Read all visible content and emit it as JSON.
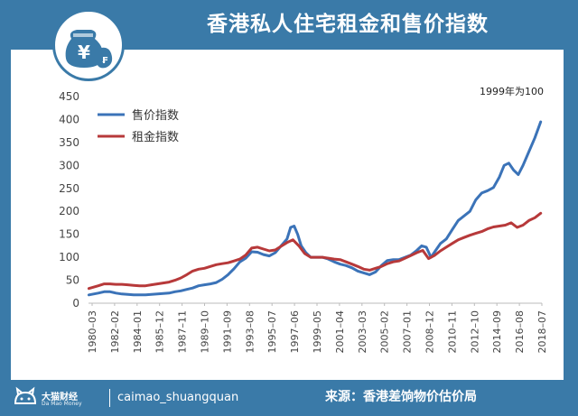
{
  "title": "香港私人住宅租金和售价指数",
  "logo": {
    "glyph": "¥",
    "icon": "money-bag-icon"
  },
  "footer": {
    "brand_cn": "大猫财经",
    "brand_en": "Da Mao Money",
    "account": "caimao_shuangquan",
    "source": "来源：香港差饷物价估价局"
  },
  "chart_data": {
    "type": "line",
    "note": "1999年为100",
    "y_ticks": [
      0,
      50,
      100,
      150,
      200,
      250,
      300,
      350,
      400,
      450
    ],
    "ylim": [
      0,
      450
    ],
    "x_ticks": [
      "1980–03",
      "1982–02",
      "1984–01",
      "1985–12",
      "1987–11",
      "1989–10",
      "1991–09",
      "1993–08",
      "1995–07",
      "1997–06",
      "1999–05",
      "2001–04",
      "2003–03",
      "2005–02",
      "2007–01",
      "2008–12",
      "2010–11",
      "2012–10",
      "2014–09",
      "2016–08",
      "2018–07"
    ],
    "xlim": [
      1980.17,
      2018.6
    ],
    "grid": false,
    "legend": "upper-left",
    "colors": {
      "price": "#3b73b8",
      "rent": "#b7393a"
    },
    "series": [
      {
        "name": "售价指数",
        "x": [
          1980.2,
          1981.0,
          1981.5,
          1982.0,
          1982.5,
          1983.0,
          1983.5,
          1984.0,
          1984.5,
          1985.0,
          1985.5,
          1986.0,
          1986.5,
          1987.0,
          1987.5,
          1988.0,
          1988.5,
          1989.0,
          1989.5,
          1990.0,
          1990.5,
          1991.0,
          1991.5,
          1992.0,
          1992.5,
          1993.0,
          1993.5,
          1994.0,
          1994.5,
          1995.0,
          1995.5,
          1996.0,
          1996.5,
          1997.0,
          1997.3,
          1997.6,
          1997.9,
          1998.2,
          1998.6,
          1999.0,
          1999.5,
          2000.0,
          2000.5,
          2001.0,
          2001.5,
          2002.0,
          2002.5,
          2003.0,
          2003.5,
          2004.0,
          2004.5,
          2005.0,
          2005.5,
          2006.0,
          2006.5,
          2007.0,
          2007.5,
          2008.0,
          2008.4,
          2008.8,
          2009.2,
          2009.6,
          2010.0,
          2010.5,
          2011.0,
          2011.5,
          2012.0,
          2012.5,
          2013.0,
          2013.5,
          2014.0,
          2014.5,
          2015.0,
          2015.4,
          2015.8,
          2016.2,
          2016.6,
          2017.0,
          2017.5,
          2018.0,
          2018.5
        ],
        "values": [
          18,
          22,
          25,
          25,
          22,
          20,
          19,
          18,
          18,
          18,
          19,
          20,
          21,
          22,
          25,
          27,
          30,
          33,
          38,
          40,
          42,
          45,
          52,
          62,
          75,
          90,
          98,
          112,
          111,
          106,
          103,
          110,
          125,
          140,
          165,
          168,
          150,
          125,
          110,
          100,
          100,
          100,
          96,
          90,
          85,
          82,
          77,
          70,
          66,
          62,
          68,
          82,
          93,
          95,
          95,
          100,
          105,
          115,
          125,
          122,
          100,
          115,
          130,
          140,
          160,
          180,
          190,
          200,
          225,
          240,
          245,
          252,
          275,
          300,
          305,
          290,
          280,
          300,
          330,
          360,
          395
        ]
      },
      {
        "name": "租金指数",
        "x": [
          1980.2,
          1981.0,
          1981.5,
          1982.0,
          1982.5,
          1983.0,
          1983.5,
          1984.0,
          1984.5,
          1985.0,
          1985.5,
          1986.0,
          1986.5,
          1987.0,
          1987.5,
          1988.0,
          1988.5,
          1989.0,
          1989.5,
          1990.0,
          1990.5,
          1991.0,
          1991.5,
          1992.0,
          1992.5,
          1993.0,
          1993.5,
          1994.0,
          1994.5,
          1995.0,
          1995.5,
          1996.0,
          1996.5,
          1997.0,
          1997.5,
          1998.0,
          1998.5,
          1999.0,
          1999.5,
          2000.0,
          2000.5,
          2001.0,
          2001.5,
          2002.0,
          2002.5,
          2003.0,
          2003.5,
          2004.0,
          2004.5,
          2005.0,
          2005.5,
          2006.0,
          2006.5,
          2007.0,
          2007.5,
          2008.0,
          2008.5,
          2009.0,
          2009.5,
          2010.0,
          2010.5,
          2011.0,
          2011.5,
          2012.0,
          2012.5,
          2013.0,
          2013.5,
          2014.0,
          2014.5,
          2015.0,
          2015.5,
          2016.0,
          2016.5,
          2017.0,
          2017.5,
          2018.0,
          2018.5
        ],
        "values": [
          32,
          38,
          42,
          42,
          41,
          41,
          40,
          39,
          38,
          38,
          40,
          42,
          44,
          46,
          50,
          55,
          62,
          70,
          74,
          76,
          80,
          84,
          86,
          88,
          92,
          96,
          105,
          120,
          122,
          118,
          114,
          116,
          124,
          132,
          138,
          125,
          108,
          100,
          100,
          100,
          98,
          96,
          95,
          90,
          85,
          80,
          74,
          72,
          76,
          80,
          86,
          90,
          92,
          98,
          104,
          110,
          115,
          97,
          104,
          114,
          122,
          130,
          138,
          143,
          148,
          152,
          156,
          162,
          166,
          168,
          170,
          175,
          165,
          170,
          180,
          186,
          196
        ]
      }
    ]
  }
}
